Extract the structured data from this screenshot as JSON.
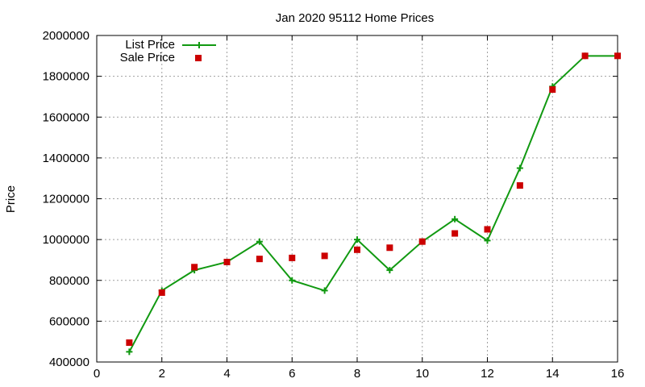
{
  "chart_data": {
    "type": "line",
    "title": "Jan 2020 95112 Home Prices",
    "xlabel": "",
    "ylabel": "Price",
    "xlim": [
      0,
      16
    ],
    "ylim": [
      400000,
      2000000
    ],
    "xticks": [
      "0",
      "2",
      "4",
      "6",
      "8",
      "10",
      "12",
      "14",
      "16"
    ],
    "yticks": [
      "400000",
      "600000",
      "800000",
      "1000000",
      "1200000",
      "1400000",
      "1600000",
      "1800000",
      "2000000"
    ],
    "grid": true,
    "legend_position": "top-left",
    "series": [
      {
        "name": "List Price",
        "style": "line+cross",
        "color": "#119911",
        "x": [
          1,
          2,
          3,
          4,
          5,
          6,
          7,
          8,
          9,
          10,
          11,
          12,
          13,
          14,
          15,
          16
        ],
        "y": [
          450000,
          750000,
          850000,
          890000,
          990000,
          800000,
          750000,
          1000000,
          850000,
          990000,
          1100000,
          995000,
          1350000,
          1750000,
          1900000,
          1900000
        ]
      },
      {
        "name": "Sale Price",
        "style": "square-marker",
        "color": "#cc0000",
        "x": [
          1,
          2,
          3,
          4,
          5,
          6,
          7,
          8,
          9,
          10,
          11,
          12,
          13,
          14,
          15,
          16
        ],
        "y": [
          495000,
          740000,
          865000,
          890000,
          905000,
          910000,
          920000,
          950000,
          960000,
          990000,
          1030000,
          1050000,
          1265000,
          1735000,
          1900000,
          1900000
        ]
      }
    ]
  }
}
